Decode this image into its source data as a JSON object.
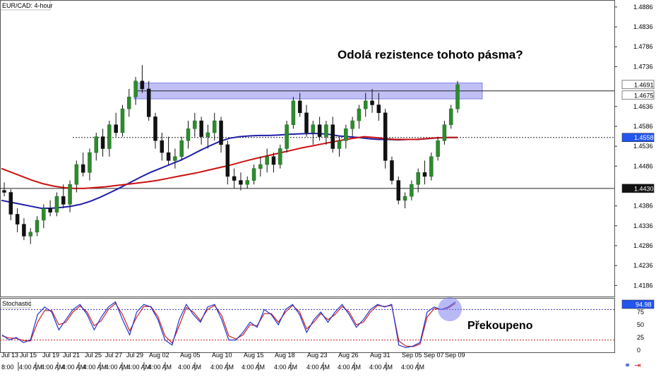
{
  "chart_data": {
    "type": "candlestick",
    "title": "EUR/CAD: 4-hour",
    "annotation_top": "Odolá rezistence tohoto pásma?",
    "annotation_bottom": "Překoupeno",
    "price_axis": {
      "ylim": [
        1.416,
        1.49
      ],
      "ticks": [
        "1.4886",
        "1.4836",
        "1.4786",
        "1.4736",
        "1.4636",
        "1.4586",
        "1.4536",
        "1.4486",
        "1.4386",
        "1.4336",
        "1.4286",
        "1.4236",
        "1.4186"
      ]
    },
    "price_tags": [
      {
        "value": "1.4691",
        "style": "white"
      },
      {
        "value": "1.4675",
        "style": "white"
      },
      {
        "value": "1.4558",
        "style": "blue"
      },
      {
        "value": "1.4430",
        "style": "black"
      }
    ],
    "resistance_zone": [
      1.4655,
      1.4695
    ],
    "horizontal_lines": [
      {
        "value": 1.4675,
        "style": "solid"
      },
      {
        "value": 1.4558,
        "style": "dashed"
      },
      {
        "value": 1.443,
        "style": "solid"
      }
    ],
    "series": [
      {
        "type": "candles",
        "ohlc": [
          [
            1.4425,
            1.4445,
            1.441,
            1.442
          ],
          [
            1.442,
            1.4428,
            1.435,
            1.4365
          ],
          [
            1.4365,
            1.438,
            1.432,
            1.434
          ],
          [
            1.434,
            1.4355,
            1.43,
            1.431
          ],
          [
            1.431,
            1.433,
            1.429,
            1.432
          ],
          [
            1.432,
            1.436,
            1.431,
            1.435
          ],
          [
            1.435,
            1.439,
            1.433,
            1.438
          ],
          [
            1.438,
            1.44,
            1.436,
            1.437
          ],
          [
            1.437,
            1.442,
            1.436,
            1.441
          ],
          [
            1.441,
            1.444,
            1.438,
            1.439
          ],
          [
            1.439,
            1.445,
            1.437,
            1.444
          ],
          [
            1.444,
            1.45,
            1.442,
            1.449
          ],
          [
            1.449,
            1.452,
            1.446,
            1.447
          ],
          [
            1.447,
            1.453,
            1.445,
            1.452
          ],
          [
            1.452,
            1.457,
            1.45,
            1.456
          ],
          [
            1.456,
            1.458,
            1.451,
            1.453
          ],
          [
            1.453,
            1.46,
            1.451,
            1.459
          ],
          [
            1.459,
            1.462,
            1.456,
            1.457
          ],
          [
            1.457,
            1.464,
            1.456,
            1.463
          ],
          [
            1.463,
            1.468,
            1.461,
            1.466
          ],
          [
            1.466,
            1.471,
            1.464,
            1.47
          ],
          [
            1.47,
            1.474,
            1.467,
            1.468
          ],
          [
            1.468,
            1.47,
            1.46,
            1.461
          ],
          [
            1.461,
            1.462,
            1.453,
            1.455
          ],
          [
            1.455,
            1.457,
            1.45,
            1.452
          ],
          [
            1.452,
            1.456,
            1.449,
            1.45
          ],
          [
            1.45,
            1.453,
            1.448,
            1.451
          ],
          [
            1.451,
            1.456,
            1.45,
            1.455
          ],
          [
            1.455,
            1.46,
            1.453,
            1.458
          ],
          [
            1.458,
            1.462,
            1.456,
            1.46
          ],
          [
            1.46,
            1.461,
            1.454,
            1.456
          ],
          [
            1.456,
            1.459,
            1.453,
            1.457
          ],
          [
            1.457,
            1.462,
            1.455,
            1.46
          ],
          [
            1.46,
            1.461,
            1.452,
            1.454
          ],
          [
            1.454,
            1.455,
            1.444,
            1.446
          ],
          [
            1.446,
            1.448,
            1.443,
            1.445
          ],
          [
            1.445,
            1.447,
            1.4425,
            1.444
          ],
          [
            1.444,
            1.446,
            1.443,
            1.445
          ],
          [
            1.445,
            1.449,
            1.444,
            1.448
          ],
          [
            1.448,
            1.451,
            1.446,
            1.449
          ],
          [
            1.449,
            1.453,
            1.447,
            1.451
          ],
          [
            1.451,
            1.452,
            1.447,
            1.449
          ],
          [
            1.449,
            1.454,
            1.448,
            1.453
          ],
          [
            1.453,
            1.46,
            1.452,
            1.459
          ],
          [
            1.459,
            1.466,
            1.458,
            1.465
          ],
          [
            1.465,
            1.467,
            1.461,
            1.462
          ],
          [
            1.462,
            1.464,
            1.456,
            1.457
          ],
          [
            1.457,
            1.46,
            1.454,
            1.459
          ],
          [
            1.459,
            1.461,
            1.455,
            1.456
          ],
          [
            1.456,
            1.46,
            1.454,
            1.459
          ],
          [
            1.459,
            1.461,
            1.452,
            1.453
          ],
          [
            1.453,
            1.456,
            1.451,
            1.455
          ],
          [
            1.455,
            1.459,
            1.453,
            1.458
          ],
          [
            1.458,
            1.461,
            1.456,
            1.46
          ],
          [
            1.46,
            1.464,
            1.458,
            1.463
          ],
          [
            1.463,
            1.467,
            1.461,
            1.465
          ],
          [
            1.465,
            1.468,
            1.462,
            1.464
          ],
          [
            1.464,
            1.467,
            1.46,
            1.462
          ],
          [
            1.462,
            1.463,
            1.448,
            1.45
          ],
          [
            1.45,
            1.451,
            1.444,
            1.445
          ],
          [
            1.445,
            1.446,
            1.439,
            1.44
          ],
          [
            1.44,
            1.442,
            1.438,
            1.441
          ],
          [
            1.441,
            1.445,
            1.44,
            1.444
          ],
          [
            1.444,
            1.448,
            1.442,
            1.447
          ],
          [
            1.447,
            1.45,
            1.444,
            1.446
          ],
          [
            1.446,
            1.452,
            1.445,
            1.451
          ],
          [
            1.451,
            1.456,
            1.45,
            1.455
          ],
          [
            1.455,
            1.46,
            1.454,
            1.459
          ],
          [
            1.459,
            1.464,
            1.458,
            1.463
          ],
          [
            1.463,
            1.47,
            1.462,
            1.4691
          ]
        ]
      },
      {
        "name": "",
        "type": "line",
        "color": "#1f1fa8",
        "values": [
          1.44,
          1.4395,
          1.439,
          1.4385,
          1.438,
          1.438,
          1.4382,
          1.4385,
          1.439,
          1.4398,
          1.4408,
          1.442,
          1.4432,
          1.4445,
          1.4458,
          1.447,
          1.448,
          1.449,
          1.45,
          1.4512,
          1.4525,
          1.4537,
          1.4548,
          1.4556,
          1.456,
          1.4562,
          1.4563,
          1.4563,
          1.4564,
          1.4566,
          1.4567,
          1.4568,
          1.4568,
          1.4566,
          1.4562,
          1.456,
          1.4558,
          1.4555,
          1.4553,
          1.4553,
          1.4552,
          1.4553,
          1.4553,
          1.4555,
          1.4557,
          1.4558,
          1.4558
        ]
      },
      {
        "name": "",
        "type": "line",
        "color": "#cc1111",
        "values": [
          1.448,
          1.447,
          1.446,
          1.445,
          1.4442,
          1.4436,
          1.4432,
          1.443,
          1.443,
          1.4432,
          1.4434,
          1.4437,
          1.444,
          1.4443,
          1.4446,
          1.445,
          1.4455,
          1.446,
          1.4465,
          1.447,
          1.4476,
          1.4482,
          1.4488,
          1.4495,
          1.4502,
          1.4508,
          1.4514,
          1.452,
          1.4526,
          1.4532,
          1.4537,
          1.4542,
          1.4547,
          1.4552,
          1.4556,
          1.456,
          1.4558,
          1.4555,
          1.4553,
          1.4553,
          1.4553,
          1.4555,
          1.4557,
          1.4558,
          1.4558
        ]
      }
    ],
    "stochastic": {
      "label": "Stochastic",
      "ticks": [
        "75",
        "50",
        "25",
        "0"
      ],
      "levels": [
        80,
        20
      ],
      "last_value": "94.98",
      "k": [
        30,
        20,
        25,
        15,
        20,
        70,
        85,
        75,
        40,
        60,
        80,
        90,
        70,
        40,
        65,
        85,
        95,
        60,
        30,
        75,
        90,
        85,
        60,
        20,
        10,
        60,
        90,
        70,
        55,
        85,
        90,
        60,
        20,
        20,
        35,
        55,
        45,
        80,
        70,
        50,
        80,
        90,
        70,
        35,
        60,
        75,
        55,
        75,
        90,
        70,
        45,
        60,
        80,
        90,
        85,
        90,
        10,
        5,
        8,
        15,
        75,
        85,
        80,
        85,
        95
      ],
      "d": [
        28,
        24,
        23,
        19,
        18,
        55,
        78,
        78,
        50,
        55,
        75,
        87,
        75,
        48,
        58,
        80,
        92,
        70,
        38,
        65,
        86,
        86,
        66,
        28,
        14,
        48,
        84,
        75,
        58,
        80,
        88,
        68,
        28,
        22,
        30,
        50,
        48,
        72,
        72,
        55,
        75,
        88,
        75,
        42,
        55,
        72,
        60,
        70,
        86,
        75,
        50,
        55,
        75,
        88,
        86,
        88,
        18,
        8,
        7,
        12,
        65,
        82,
        80,
        83,
        92
      ]
    },
    "x_labels_top": [
      "Jul 13",
      "Jul 15",
      "Jul 19",
      "Jul 21",
      "Jul 25",
      "Jul 27",
      "Jul 29",
      "Aug 02",
      "Aug 05",
      "Aug 10",
      "Aug 15",
      "Aug 18",
      "Aug 23",
      "Aug 26",
      "Aug 31",
      "Sep 05",
      "Sep 07",
      "Sep 09"
    ],
    "x_labels_bottom": [
      "8:00",
      "4:00 AM",
      "4:00 AM",
      "4:00 AM",
      "4:00 AM",
      "4:00 AM",
      "4:00 AM",
      "4:00 AM",
      "4:00 AM",
      "4:00 AM",
      "4:00 AM",
      "4:00 AM",
      "4:00 AM",
      "4:00 AM",
      "4:00 AM",
      "4:00 AM"
    ]
  }
}
